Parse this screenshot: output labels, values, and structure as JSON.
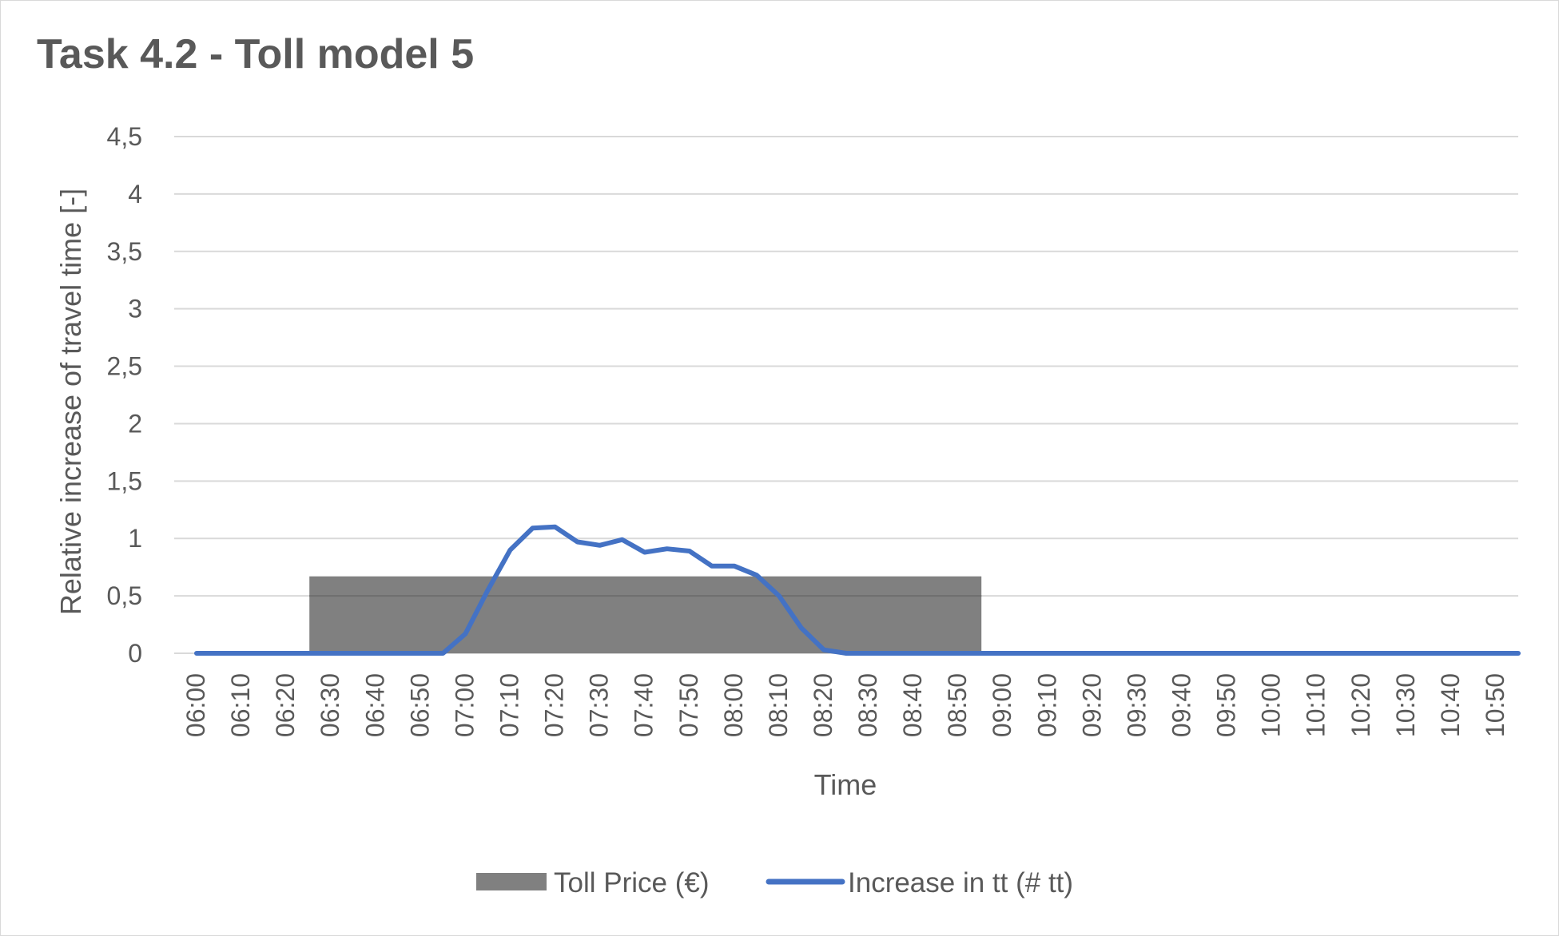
{
  "chart_data": {
    "type": "bar+line",
    "title": "Task 4.2 - Toll model 5",
    "xlabel": "Time",
    "ylabel": "Relative increase of travel time [-]",
    "ylim": [
      0,
      4.5
    ],
    "y_ticks": [
      "0",
      "0,5",
      "1",
      "1,5",
      "2",
      "2,5",
      "3",
      "3,5",
      "4",
      "4,5"
    ],
    "categories": [
      "06:00",
      "06:10",
      "06:20",
      "06:30",
      "06:40",
      "06:50",
      "07:00",
      "07:10",
      "07:20",
      "07:30",
      "07:40",
      "07:50",
      "08:00",
      "08:10",
      "08:20",
      "08:30",
      "08:40",
      "08:50",
      "09:00",
      "09:10",
      "09:20",
      "09:30",
      "09:40",
      "09:50",
      "10:00",
      "10:10",
      "10:20",
      "10:30",
      "10:40",
      "10:50"
    ],
    "grid": true,
    "legend_position": "bottom",
    "series": [
      {
        "name": "Toll Price (€)",
        "kind": "bar",
        "color": "#808080",
        "segments": [
          {
            "from": "06:30",
            "to": "08:55",
            "value": 0.67
          }
        ]
      },
      {
        "name": "Increase in tt (# tt)",
        "kind": "line",
        "color": "#4472c4",
        "x": [
          "06:00",
          "06:05",
          "06:10",
          "06:15",
          "06:20",
          "06:25",
          "06:30",
          "06:35",
          "06:40",
          "06:45",
          "06:50",
          "06:55",
          "07:00",
          "07:05",
          "07:10",
          "07:15",
          "07:20",
          "07:25",
          "07:30",
          "07:35",
          "07:40",
          "07:45",
          "07:50",
          "07:55",
          "08:00",
          "08:05",
          "08:10",
          "08:15",
          "08:20",
          "08:25",
          "08:30",
          "08:35",
          "08:40",
          "08:45",
          "08:50",
          "08:55",
          "09:00",
          "09:10",
          "09:20",
          "09:30",
          "09:40",
          "09:50",
          "10:00",
          "10:10",
          "10:20",
          "10:30",
          "10:40",
          "10:50",
          "10:55"
        ],
        "values": [
          0,
          0,
          0,
          0,
          0,
          0,
          0,
          0,
          0,
          0,
          0,
          0,
          0.17,
          0.55,
          0.9,
          1.09,
          1.1,
          0.97,
          0.94,
          0.99,
          0.88,
          0.91,
          0.89,
          0.76,
          0.76,
          0.68,
          0.5,
          0.22,
          0.03,
          0,
          0,
          0,
          0,
          0,
          0,
          0,
          0,
          0,
          0,
          0,
          0,
          0,
          0,
          0,
          0,
          0,
          0,
          0,
          0
        ]
      }
    ]
  }
}
